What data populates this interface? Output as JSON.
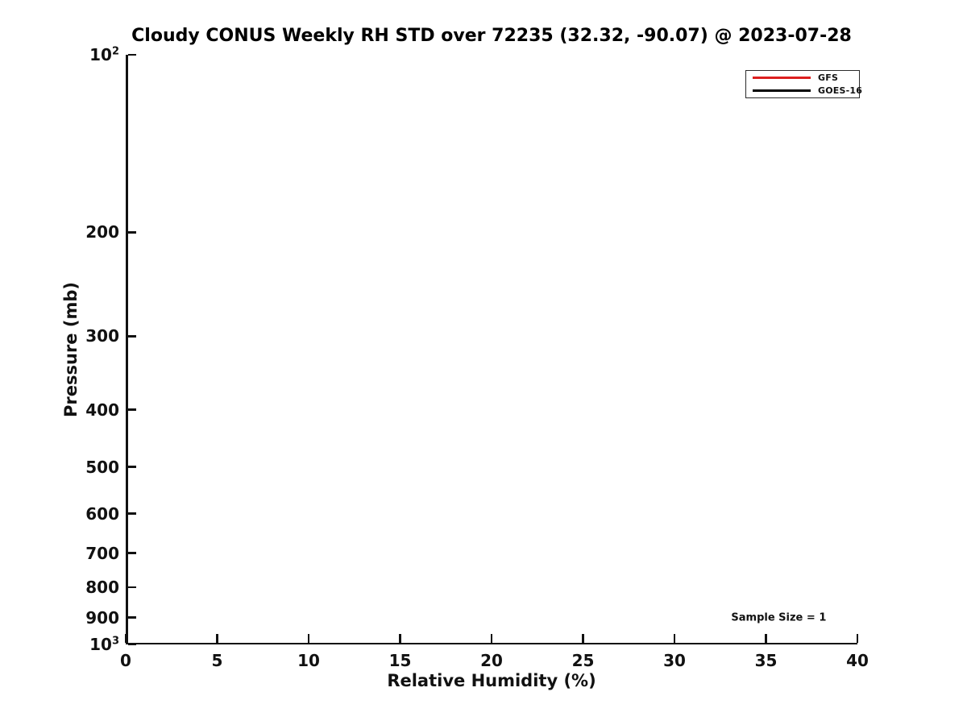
{
  "chart_data": {
    "type": "line",
    "title": "Cloudy CONUS Weekly RH STD over 72235 (32.32, -90.07) @ 2023-07-28",
    "xlabel": "Relative Humidity (%)",
    "ylabel": "Pressure (mb)",
    "xlim": [
      0,
      40
    ],
    "ylim": [
      100,
      1000
    ],
    "xscale": "linear",
    "yscale": "log",
    "y_axis_inverted": true,
    "grid": false,
    "legend_position": "upper-right",
    "xticks": [
      {
        "value": 0,
        "label": "0"
      },
      {
        "value": 5,
        "label": "5"
      },
      {
        "value": 10,
        "label": "10"
      },
      {
        "value": 15,
        "label": "15"
      },
      {
        "value": 20,
        "label": "20"
      },
      {
        "value": 25,
        "label": "25"
      },
      {
        "value": 30,
        "label": "30"
      },
      {
        "value": 35,
        "label": "35"
      },
      {
        "value": 40,
        "label": "40"
      }
    ],
    "yticks": [
      {
        "value": 100,
        "label": "10",
        "sup": "2"
      },
      {
        "value": 200,
        "label": "200"
      },
      {
        "value": 300,
        "label": "300"
      },
      {
        "value": 400,
        "label": "400"
      },
      {
        "value": 500,
        "label": "500"
      },
      {
        "value": 600,
        "label": "600"
      },
      {
        "value": 700,
        "label": "700"
      },
      {
        "value": 800,
        "label": "800"
      },
      {
        "value": 900,
        "label": "900"
      },
      {
        "value": 1000,
        "label": "10",
        "sup": "3"
      }
    ],
    "series": [
      {
        "name": "GFS",
        "color": "#dc1f1f",
        "x": [],
        "y": []
      },
      {
        "name": "GOES-16",
        "color": "#000000",
        "x": [],
        "y": []
      }
    ],
    "annotations": [
      {
        "text": "Sample Size = 1",
        "x": 35.7,
        "y": 900
      }
    ]
  }
}
